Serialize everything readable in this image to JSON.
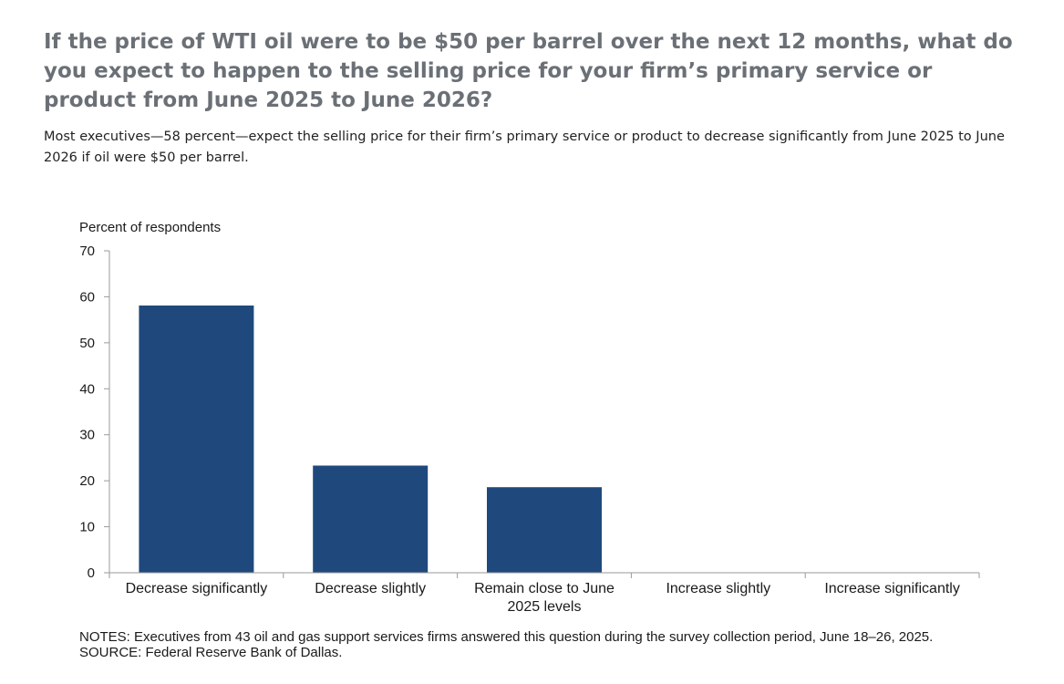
{
  "page": {
    "title": "If the price of WTI oil were to be $50 per barrel over the next 12 months, what do you expect to happen to the selling price for your firm’s primary service or product from June 2025 to June 2026?",
    "subtitle": "Most executives—58 percent—expect the selling price for their firm’s primary service or product to decrease significantly from June 2025 to June 2026 if oil were $50 per barrel.",
    "notes": "NOTES: Executives from 43 oil and gas support services firms answered this question during the survey collection period, June 18–26, 2025.",
    "source": "SOURCE: Federal Reserve Bank of Dallas."
  },
  "chart_data": {
    "type": "bar",
    "ylabel": "Percent of respondents",
    "xlabel": "",
    "categories": [
      [
        "Decrease significantly"
      ],
      [
        "Decrease slightly"
      ],
      [
        "Remain close to June",
        "2025 levels"
      ],
      [
        "Increase slightly"
      ],
      [
        "Increase significantly"
      ]
    ],
    "values": [
      58.1,
      23.3,
      18.6,
      0,
      0
    ],
    "ylim": [
      0,
      70
    ],
    "yticks": [
      0,
      10,
      20,
      30,
      40,
      50,
      60,
      70
    ],
    "bar_color": "#1f497d",
    "grid": false,
    "legend": "none"
  }
}
